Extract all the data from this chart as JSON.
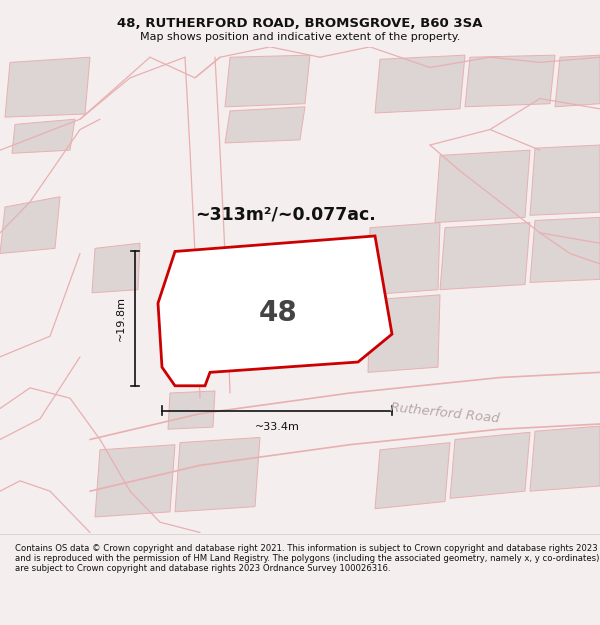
{
  "title": "48, RUTHERFORD ROAD, BROMSGROVE, B60 3SA",
  "subtitle": "Map shows position and indicative extent of the property.",
  "area_label": "~313m²/~0.077ac.",
  "property_number": "48",
  "dim_width": "~33.4m",
  "dim_height": "~19.8m",
  "road_label": "Rutherford Road",
  "footer_text": "Contains OS data © Crown copyright and database right 2021. This information is subject to Crown copyright and database rights 2023 and is reproduced with the permission of HM Land Registry. The polygons (including the associated geometry, namely x, y co-ordinates) are subject to Crown copyright and database rights 2023 Ordnance Survey 100026316.",
  "bg_color": "#f5eeee",
  "map_bg": "#f5eeee",
  "plot_fill": "#ffffff",
  "plot_edge": "#cc0000",
  "road_color": "#e8b0b0",
  "bld_fill": "#ddd4d4",
  "bld_edge": "#e8b0b0",
  "footer_bg": "#ffffff",
  "title_color": "#111111",
  "footer_color": "#111111",
  "road_label_color": "#b8a8a8",
  "dim_color": "#111111"
}
